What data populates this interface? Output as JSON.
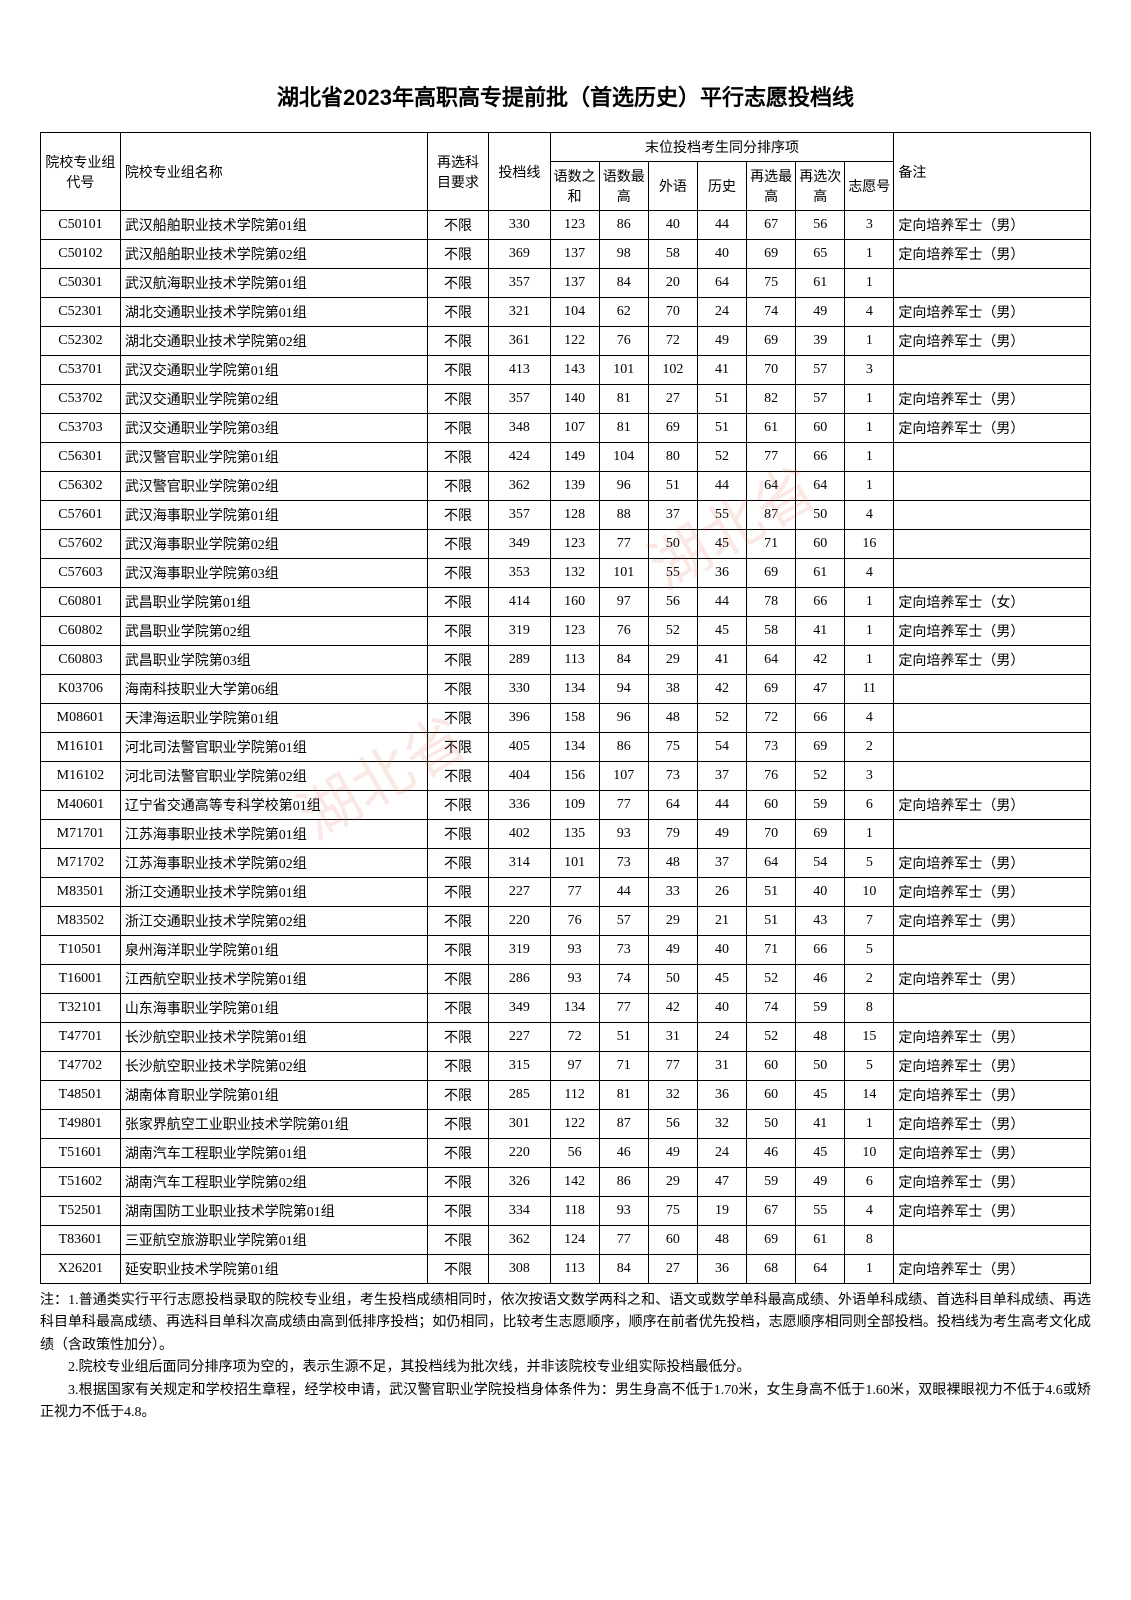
{
  "title": "湖北省2023年高职高专提前批（首选历史）平行志愿投档线",
  "headers": {
    "code": "院校专业组代号",
    "name": "院校专业组名称",
    "requirement": "再选科目要求",
    "score": "投档线",
    "tiebreak_group": "末位投档考生同分排序项",
    "sub1": "语数之和",
    "sub2": "语数最高",
    "sub3": "外语",
    "sub4": "历史",
    "sub5": "再选最高",
    "sub6": "再选次高",
    "sub7": "志愿号",
    "note": "备注"
  },
  "rows": [
    {
      "code": "C50101",
      "name": "武汉船舶职业技术学院第01组",
      "req": "不限",
      "score": "330",
      "s1": "123",
      "s2": "86",
      "s3": "40",
      "s4": "44",
      "s5": "67",
      "s6": "56",
      "s7": "3",
      "note": "定向培养军士（男）"
    },
    {
      "code": "C50102",
      "name": "武汉船舶职业技术学院第02组",
      "req": "不限",
      "score": "369",
      "s1": "137",
      "s2": "98",
      "s3": "58",
      "s4": "40",
      "s5": "69",
      "s6": "65",
      "s7": "1",
      "note": "定向培养军士（男）"
    },
    {
      "code": "C50301",
      "name": "武汉航海职业技术学院第01组",
      "req": "不限",
      "score": "357",
      "s1": "137",
      "s2": "84",
      "s3": "20",
      "s4": "64",
      "s5": "75",
      "s6": "61",
      "s7": "1",
      "note": ""
    },
    {
      "code": "C52301",
      "name": "湖北交通职业技术学院第01组",
      "req": "不限",
      "score": "321",
      "s1": "104",
      "s2": "62",
      "s3": "70",
      "s4": "24",
      "s5": "74",
      "s6": "49",
      "s7": "4",
      "note": "定向培养军士（男）"
    },
    {
      "code": "C52302",
      "name": "湖北交通职业技术学院第02组",
      "req": "不限",
      "score": "361",
      "s1": "122",
      "s2": "76",
      "s3": "72",
      "s4": "49",
      "s5": "69",
      "s6": "39",
      "s7": "1",
      "note": "定向培养军士（男）"
    },
    {
      "code": "C53701",
      "name": "武汉交通职业学院第01组",
      "req": "不限",
      "score": "413",
      "s1": "143",
      "s2": "101",
      "s3": "102",
      "s4": "41",
      "s5": "70",
      "s6": "57",
      "s7": "3",
      "note": ""
    },
    {
      "code": "C53702",
      "name": "武汉交通职业学院第02组",
      "req": "不限",
      "score": "357",
      "s1": "140",
      "s2": "81",
      "s3": "27",
      "s4": "51",
      "s5": "82",
      "s6": "57",
      "s7": "1",
      "note": "定向培养军士（男）"
    },
    {
      "code": "C53703",
      "name": "武汉交通职业学院第03组",
      "req": "不限",
      "score": "348",
      "s1": "107",
      "s2": "81",
      "s3": "69",
      "s4": "51",
      "s5": "61",
      "s6": "60",
      "s7": "1",
      "note": "定向培养军士（男）"
    },
    {
      "code": "C56301",
      "name": "武汉警官职业学院第01组",
      "req": "不限",
      "score": "424",
      "s1": "149",
      "s2": "104",
      "s3": "80",
      "s4": "52",
      "s5": "77",
      "s6": "66",
      "s7": "1",
      "note": ""
    },
    {
      "code": "C56302",
      "name": "武汉警官职业学院第02组",
      "req": "不限",
      "score": "362",
      "s1": "139",
      "s2": "96",
      "s3": "51",
      "s4": "44",
      "s5": "64",
      "s6": "64",
      "s7": "1",
      "note": ""
    },
    {
      "code": "C57601",
      "name": "武汉海事职业学院第01组",
      "req": "不限",
      "score": "357",
      "s1": "128",
      "s2": "88",
      "s3": "37",
      "s4": "55",
      "s5": "87",
      "s6": "50",
      "s7": "4",
      "note": ""
    },
    {
      "code": "C57602",
      "name": "武汉海事职业学院第02组",
      "req": "不限",
      "score": "349",
      "s1": "123",
      "s2": "77",
      "s3": "50",
      "s4": "45",
      "s5": "71",
      "s6": "60",
      "s7": "16",
      "note": ""
    },
    {
      "code": "C57603",
      "name": "武汉海事职业学院第03组",
      "req": "不限",
      "score": "353",
      "s1": "132",
      "s2": "101",
      "s3": "55",
      "s4": "36",
      "s5": "69",
      "s6": "61",
      "s7": "4",
      "note": ""
    },
    {
      "code": "C60801",
      "name": "武昌职业学院第01组",
      "req": "不限",
      "score": "414",
      "s1": "160",
      "s2": "97",
      "s3": "56",
      "s4": "44",
      "s5": "78",
      "s6": "66",
      "s7": "1",
      "note": "定向培养军士（女）"
    },
    {
      "code": "C60802",
      "name": "武昌职业学院第02组",
      "req": "不限",
      "score": "319",
      "s1": "123",
      "s2": "76",
      "s3": "52",
      "s4": "45",
      "s5": "58",
      "s6": "41",
      "s7": "1",
      "note": "定向培养军士（男）"
    },
    {
      "code": "C60803",
      "name": "武昌职业学院第03组",
      "req": "不限",
      "score": "289",
      "s1": "113",
      "s2": "84",
      "s3": "29",
      "s4": "41",
      "s5": "64",
      "s6": "42",
      "s7": "1",
      "note": "定向培养军士（男）"
    },
    {
      "code": "K03706",
      "name": "海南科技职业大学第06组",
      "req": "不限",
      "score": "330",
      "s1": "134",
      "s2": "94",
      "s3": "38",
      "s4": "42",
      "s5": "69",
      "s6": "47",
      "s7": "11",
      "note": ""
    },
    {
      "code": "M08601",
      "name": "天津海运职业学院第01组",
      "req": "不限",
      "score": "396",
      "s1": "158",
      "s2": "96",
      "s3": "48",
      "s4": "52",
      "s5": "72",
      "s6": "66",
      "s7": "4",
      "note": ""
    },
    {
      "code": "M16101",
      "name": "河北司法警官职业学院第01组",
      "req": "不限",
      "score": "405",
      "s1": "134",
      "s2": "86",
      "s3": "75",
      "s4": "54",
      "s5": "73",
      "s6": "69",
      "s7": "2",
      "note": ""
    },
    {
      "code": "M16102",
      "name": "河北司法警官职业学院第02组",
      "req": "不限",
      "score": "404",
      "s1": "156",
      "s2": "107",
      "s3": "73",
      "s4": "37",
      "s5": "76",
      "s6": "52",
      "s7": "3",
      "note": ""
    },
    {
      "code": "M40601",
      "name": "辽宁省交通高等专科学校第01组",
      "req": "不限",
      "score": "336",
      "s1": "109",
      "s2": "77",
      "s3": "64",
      "s4": "44",
      "s5": "60",
      "s6": "59",
      "s7": "6",
      "note": "定向培养军士（男）"
    },
    {
      "code": "M71701",
      "name": "江苏海事职业技术学院第01组",
      "req": "不限",
      "score": "402",
      "s1": "135",
      "s2": "93",
      "s3": "79",
      "s4": "49",
      "s5": "70",
      "s6": "69",
      "s7": "1",
      "note": ""
    },
    {
      "code": "M71702",
      "name": "江苏海事职业技术学院第02组",
      "req": "不限",
      "score": "314",
      "s1": "101",
      "s2": "73",
      "s3": "48",
      "s4": "37",
      "s5": "64",
      "s6": "54",
      "s7": "5",
      "note": "定向培养军士（男）"
    },
    {
      "code": "M83501",
      "name": "浙江交通职业技术学院第01组",
      "req": "不限",
      "score": "227",
      "s1": "77",
      "s2": "44",
      "s3": "33",
      "s4": "26",
      "s5": "51",
      "s6": "40",
      "s7": "10",
      "note": "定向培养军士（男）"
    },
    {
      "code": "M83502",
      "name": "浙江交通职业技术学院第02组",
      "req": "不限",
      "score": "220",
      "s1": "76",
      "s2": "57",
      "s3": "29",
      "s4": "21",
      "s5": "51",
      "s6": "43",
      "s7": "7",
      "note": "定向培养军士（男）"
    },
    {
      "code": "T10501",
      "name": "泉州海洋职业学院第01组",
      "req": "不限",
      "score": "319",
      "s1": "93",
      "s2": "73",
      "s3": "49",
      "s4": "40",
      "s5": "71",
      "s6": "66",
      "s7": "5",
      "note": ""
    },
    {
      "code": "T16001",
      "name": "江西航空职业技术学院第01组",
      "req": "不限",
      "score": "286",
      "s1": "93",
      "s2": "74",
      "s3": "50",
      "s4": "45",
      "s5": "52",
      "s6": "46",
      "s7": "2",
      "note": "定向培养军士（男）"
    },
    {
      "code": "T32101",
      "name": "山东海事职业学院第01组",
      "req": "不限",
      "score": "349",
      "s1": "134",
      "s2": "77",
      "s3": "42",
      "s4": "40",
      "s5": "74",
      "s6": "59",
      "s7": "8",
      "note": ""
    },
    {
      "code": "T47701",
      "name": "长沙航空职业技术学院第01组",
      "req": "不限",
      "score": "227",
      "s1": "72",
      "s2": "51",
      "s3": "31",
      "s4": "24",
      "s5": "52",
      "s6": "48",
      "s7": "15",
      "note": "定向培养军士（男）"
    },
    {
      "code": "T47702",
      "name": "长沙航空职业技术学院第02组",
      "req": "不限",
      "score": "315",
      "s1": "97",
      "s2": "71",
      "s3": "77",
      "s4": "31",
      "s5": "60",
      "s6": "50",
      "s7": "5",
      "note": "定向培养军士（男）"
    },
    {
      "code": "T48501",
      "name": "湖南体育职业学院第01组",
      "req": "不限",
      "score": "285",
      "s1": "112",
      "s2": "81",
      "s3": "32",
      "s4": "36",
      "s5": "60",
      "s6": "45",
      "s7": "14",
      "note": "定向培养军士（男）"
    },
    {
      "code": "T49801",
      "name": "张家界航空工业职业技术学院第01组",
      "req": "不限",
      "score": "301",
      "s1": "122",
      "s2": "87",
      "s3": "56",
      "s4": "32",
      "s5": "50",
      "s6": "41",
      "s7": "1",
      "note": "定向培养军士（男）"
    },
    {
      "code": "T51601",
      "name": "湖南汽车工程职业学院第01组",
      "req": "不限",
      "score": "220",
      "s1": "56",
      "s2": "46",
      "s3": "49",
      "s4": "24",
      "s5": "46",
      "s6": "45",
      "s7": "10",
      "note": "定向培养军士（男）"
    },
    {
      "code": "T51602",
      "name": "湖南汽车工程职业学院第02组",
      "req": "不限",
      "score": "326",
      "s1": "142",
      "s2": "86",
      "s3": "29",
      "s4": "47",
      "s5": "59",
      "s6": "49",
      "s7": "6",
      "note": "定向培养军士（男）"
    },
    {
      "code": "T52501",
      "name": "湖南国防工业职业技术学院第01组",
      "req": "不限",
      "score": "334",
      "s1": "118",
      "s2": "93",
      "s3": "75",
      "s4": "19",
      "s5": "67",
      "s6": "55",
      "s7": "4",
      "note": "定向培养军士（男）"
    },
    {
      "code": "T83601",
      "name": "三亚航空旅游职业学院第01组",
      "req": "不限",
      "score": "362",
      "s1": "124",
      "s2": "77",
      "s3": "60",
      "s4": "48",
      "s5": "69",
      "s6": "61",
      "s7": "8",
      "note": ""
    },
    {
      "code": "X26201",
      "name": "延安职业技术学院第01组",
      "req": "不限",
      "score": "308",
      "s1": "113",
      "s2": "84",
      "s3": "27",
      "s4": "36",
      "s5": "68",
      "s6": "64",
      "s7": "1",
      "note": "定向培养军士（男）"
    }
  ],
  "notes": {
    "line1": "注：1.普通类实行平行志愿投档录取的院校专业组，考生投档成绩相同时，依次按语文数学两科之和、语文或数学单科最高成绩、外语单科成绩、首选科目单科成绩、再选科目单科最高成绩、再选科目单科次高成绩由高到低排序投档；如仍相同，比较考生志愿顺序，顺序在前者优先投档，志愿顺序相同则全部投档。投档线为考生高考文化成绩（含政策性加分）。",
    "line2": "2.院校专业组后面同分排序项为空的，表示生源不足，其投档线为批次线，并非该院校专业组实际投档最低分。",
    "line3": "3.根据国家有关规定和学校招生章程，经学校申请，武汉警官职业学院投档身体条件为：男生身高不低于1.70米，女生身高不低于1.60米，双眼裸眼视力不低于4.6或矫正视力不低于4.8。"
  },
  "watermark": "湖北省"
}
